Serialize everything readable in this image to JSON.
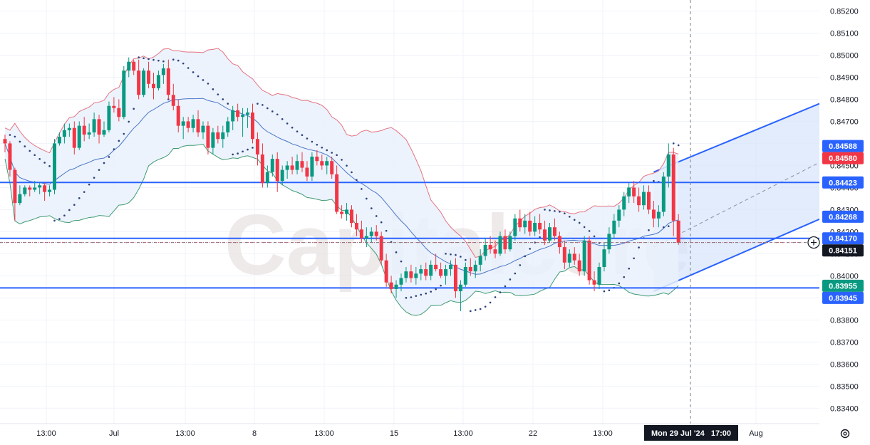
{
  "chart_data": {
    "type": "candlestick",
    "watermark": "Capitalcore",
    "ylim": [
      0.8333,
      0.8525
    ],
    "y_ticks": [
      0.834,
      0.835,
      0.836,
      0.837,
      0.838,
      0.839,
      0.84,
      0.841,
      0.842,
      0.843,
      0.844,
      0.845,
      0.846,
      0.847,
      0.848,
      0.849,
      0.85,
      0.851,
      0.852
    ],
    "y_tick_labels": [
      "0.83400",
      "0.83500",
      "0.83600",
      "0.83700",
      "0.83800",
      "0.83900",
      "0.84000",
      "0.84100",
      "0.84200",
      "0.84300",
      "0.84400",
      "0.84500",
      "0.84600",
      "0.84700",
      "0.84800",
      "0.84900",
      "0.85000",
      "0.85100",
      "0.85200"
    ],
    "x_tick_labels": [
      "13:00",
      "Jul",
      "13:00",
      "8",
      "13:00",
      "15",
      "13:00",
      "22",
      "13:00",
      "Aug"
    ],
    "crosshair_time_label": "Mon 29 Jul '24   17:00",
    "price_tags": [
      {
        "text": "0.84588",
        "value": 0.84588,
        "color": "#2962ff"
      },
      {
        "text": "0.84580",
        "value": 0.8458,
        "color": "#f23645"
      },
      {
        "text": "0.84423",
        "value": 0.84423,
        "color": "#2962ff"
      },
      {
        "text": "0.84268",
        "value": 0.84268,
        "color": "#2962ff"
      },
      {
        "text": "0.84170",
        "value": 0.8417,
        "color": "#2962ff"
      },
      {
        "text": "0.84151",
        "value": 0.84151,
        "color": "#131722"
      },
      {
        "text": "0.83955",
        "value": 0.83955,
        "color": "#089981"
      },
      {
        "text": "0.83945",
        "value": 0.83945,
        "color": "#2962ff"
      }
    ],
    "horizontal_levels": [
      0.84423,
      0.8417,
      0.83945
    ],
    "current_price": 0.84151,
    "colors": {
      "up": "#089981",
      "down": "#f23645",
      "level": "#2962ff",
      "band_upper": "#e57380",
      "band_lower": "#3f9a72",
      "band_basis": "#4a76c7",
      "band_fill": "#e9f1fb",
      "channel_fill": "#d6e4fb",
      "sar": "#2a3f7a"
    },
    "channel": {
      "start_index": 131,
      "end_index": 172,
      "upper_start": 0.8447,
      "upper_end": 0.8485,
      "mid_start": 0.8413,
      "mid_end": 0.846,
      "lower_start": 0.8393,
      "lower_end": 0.8433
    },
    "candles": [
      [
        0.8462,
        0.8464,
        0.8456,
        0.846
      ],
      [
        0.846,
        0.8461,
        0.8445,
        0.8448
      ],
      [
        0.8448,
        0.8449,
        0.8425,
        0.8433
      ],
      [
        0.8433,
        0.8441,
        0.8432,
        0.8437
      ],
      [
        0.8437,
        0.8441,
        0.8436,
        0.844
      ],
      [
        0.844,
        0.8441,
        0.8436,
        0.8439
      ],
      [
        0.8439,
        0.8443,
        0.8438,
        0.844
      ],
      [
        0.844,
        0.8442,
        0.8437,
        0.8441
      ],
      [
        0.8441,
        0.8442,
        0.8434,
        0.8438
      ],
      [
        0.8438,
        0.8441,
        0.8436,
        0.8439
      ],
      [
        0.8439,
        0.8462,
        0.8437,
        0.846
      ],
      [
        0.846,
        0.8465,
        0.8459,
        0.8463
      ],
      [
        0.8463,
        0.8469,
        0.846,
        0.8466
      ],
      [
        0.8466,
        0.8469,
        0.8463,
        0.8467
      ],
      [
        0.8467,
        0.847,
        0.8455,
        0.8458
      ],
      [
        0.8458,
        0.847,
        0.8457,
        0.8468
      ],
      [
        0.8468,
        0.8472,
        0.8461,
        0.8464
      ],
      [
        0.8464,
        0.8469,
        0.8462,
        0.8465
      ],
      [
        0.8465,
        0.8474,
        0.8463,
        0.8471
      ],
      [
        0.8471,
        0.8473,
        0.846,
        0.8464
      ],
      [
        0.8464,
        0.847,
        0.8463,
        0.8466
      ],
      [
        0.8466,
        0.8479,
        0.8465,
        0.8477
      ],
      [
        0.8477,
        0.8481,
        0.8474,
        0.8476
      ],
      [
        0.8476,
        0.848,
        0.847,
        0.8472
      ],
      [
        0.8472,
        0.8495,
        0.8471,
        0.8493
      ],
      [
        0.8493,
        0.8499,
        0.849,
        0.8497
      ],
      [
        0.8497,
        0.8498,
        0.8491,
        0.8493
      ],
      [
        0.8493,
        0.8498,
        0.848,
        0.8482
      ],
      [
        0.8482,
        0.8494,
        0.8481,
        0.8493
      ],
      [
        0.8493,
        0.8497,
        0.8485,
        0.8487
      ],
      [
        0.8487,
        0.8492,
        0.848,
        0.8485
      ],
      [
        0.8485,
        0.8493,
        0.8484,
        0.8491
      ],
      [
        0.8491,
        0.8496,
        0.8487,
        0.8494
      ],
      [
        0.8494,
        0.8498,
        0.848,
        0.8482
      ],
      [
        0.8482,
        0.8487,
        0.8475,
        0.8477
      ],
      [
        0.8477,
        0.848,
        0.8465,
        0.8468
      ],
      [
        0.8468,
        0.8472,
        0.8462,
        0.847
      ],
      [
        0.847,
        0.8472,
        0.8465,
        0.8467
      ],
      [
        0.8467,
        0.8473,
        0.8465,
        0.8471
      ],
      [
        0.8471,
        0.8475,
        0.8463,
        0.8465
      ],
      [
        0.8465,
        0.847,
        0.8462,
        0.8468
      ],
      [
        0.8468,
        0.847,
        0.8455,
        0.8458
      ],
      [
        0.8458,
        0.8467,
        0.8455,
        0.8465
      ],
      [
        0.8465,
        0.8468,
        0.846,
        0.8462
      ],
      [
        0.8462,
        0.8468,
        0.8458,
        0.8465
      ],
      [
        0.8465,
        0.8472,
        0.8463,
        0.847
      ],
      [
        0.847,
        0.8477,
        0.8466,
        0.8475
      ],
      [
        0.8475,
        0.8478,
        0.847,
        0.8472
      ],
      [
        0.8472,
        0.8476,
        0.8463,
        0.8473
      ],
      [
        0.8473,
        0.8476,
        0.8467,
        0.8474
      ],
      [
        0.8474,
        0.8478,
        0.846,
        0.8462
      ],
      [
        0.8462,
        0.8465,
        0.845,
        0.8455
      ],
      [
        0.8455,
        0.846,
        0.844,
        0.8442
      ],
      [
        0.8442,
        0.845,
        0.844,
        0.8447
      ],
      [
        0.8447,
        0.8455,
        0.8445,
        0.8453
      ],
      [
        0.8453,
        0.8456,
        0.8438,
        0.8443
      ],
      [
        0.8443,
        0.845,
        0.8441,
        0.8448
      ],
      [
        0.8448,
        0.8452,
        0.8444,
        0.845
      ],
      [
        0.845,
        0.8454,
        0.8446,
        0.8448
      ],
      [
        0.8448,
        0.8455,
        0.8446,
        0.8452
      ],
      [
        0.8452,
        0.8456,
        0.8447,
        0.8449
      ],
      [
        0.8449,
        0.8452,
        0.8443,
        0.8445
      ],
      [
        0.8445,
        0.8456,
        0.8443,
        0.8454
      ],
      [
        0.8454,
        0.8457,
        0.845,
        0.8452
      ],
      [
        0.8452,
        0.8455,
        0.8448,
        0.845
      ],
      [
        0.845,
        0.8454,
        0.8446,
        0.8452
      ],
      [
        0.8452,
        0.8454,
        0.8444,
        0.8446
      ],
      [
        0.8446,
        0.845,
        0.8428,
        0.8429
      ],
      [
        0.8429,
        0.8432,
        0.8426,
        0.8428
      ],
      [
        0.8428,
        0.8433,
        0.8425,
        0.843
      ],
      [
        0.843,
        0.8432,
        0.8422,
        0.8424
      ],
      [
        0.8424,
        0.8428,
        0.8418,
        0.8421
      ],
      [
        0.8421,
        0.8425,
        0.8415,
        0.8417
      ],
      [
        0.8417,
        0.8422,
        0.8413,
        0.8418
      ],
      [
        0.8418,
        0.8422,
        0.8415,
        0.842
      ],
      [
        0.842,
        0.8423,
        0.8416,
        0.8418
      ],
      [
        0.8418,
        0.842,
        0.8405,
        0.8407
      ],
      [
        0.8407,
        0.841,
        0.8395,
        0.8397
      ],
      [
        0.8397,
        0.84,
        0.8392,
        0.8394
      ],
      [
        0.8394,
        0.8398,
        0.839,
        0.8396
      ],
      [
        0.8396,
        0.8401,
        0.8393,
        0.8399
      ],
      [
        0.8399,
        0.8404,
        0.8397,
        0.8402
      ],
      [
        0.8402,
        0.8405,
        0.8397,
        0.8399
      ],
      [
        0.8399,
        0.8404,
        0.8396,
        0.8401
      ],
      [
        0.8401,
        0.8405,
        0.8398,
        0.8403
      ],
      [
        0.8403,
        0.8406,
        0.8398,
        0.84
      ],
      [
        0.84,
        0.8407,
        0.8398,
        0.8405
      ],
      [
        0.8405,
        0.841,
        0.8402,
        0.8403
      ],
      [
        0.8403,
        0.8406,
        0.8399,
        0.84
      ],
      [
        0.84,
        0.8405,
        0.8396,
        0.8403
      ],
      [
        0.8403,
        0.8407,
        0.84,
        0.8405
      ],
      [
        0.8405,
        0.8408,
        0.839,
        0.8393
      ],
      [
        0.8393,
        0.8398,
        0.8384,
        0.8396
      ],
      [
        0.8396,
        0.8406,
        0.8395,
        0.8404
      ],
      [
        0.8404,
        0.8408,
        0.84,
        0.8402
      ],
      [
        0.8402,
        0.8407,
        0.8399,
        0.8405
      ],
      [
        0.8405,
        0.8412,
        0.8402,
        0.8409
      ],
      [
        0.8409,
        0.8417,
        0.8407,
        0.8414
      ],
      [
        0.8414,
        0.8418,
        0.841,
        0.8412
      ],
      [
        0.8412,
        0.8416,
        0.8408,
        0.841
      ],
      [
        0.841,
        0.842,
        0.8409,
        0.8418
      ],
      [
        0.8418,
        0.8421,
        0.841,
        0.8412
      ],
      [
        0.8412,
        0.842,
        0.8411,
        0.8418
      ],
      [
        0.8418,
        0.8428,
        0.8416,
        0.8426
      ],
      [
        0.8426,
        0.843,
        0.842,
        0.8422
      ],
      [
        0.8422,
        0.8428,
        0.8419,
        0.8425
      ],
      [
        0.8425,
        0.8429,
        0.8418,
        0.842
      ],
      [
        0.842,
        0.8427,
        0.8418,
        0.8424
      ],
      [
        0.8424,
        0.8428,
        0.8419,
        0.8421
      ],
      [
        0.8421,
        0.8425,
        0.8414,
        0.8416
      ],
      [
        0.8416,
        0.8424,
        0.8415,
        0.8422
      ],
      [
        0.8422,
        0.8426,
        0.8416,
        0.8418
      ],
      [
        0.8418,
        0.842,
        0.841,
        0.8413
      ],
      [
        0.8413,
        0.8416,
        0.8403,
        0.8406
      ],
      [
        0.8406,
        0.8412,
        0.8404,
        0.841
      ],
      [
        0.841,
        0.8413,
        0.8405,
        0.8407
      ],
      [
        0.8407,
        0.841,
        0.84,
        0.8402
      ],
      [
        0.8402,
        0.8418,
        0.84,
        0.8416
      ],
      [
        0.8416,
        0.8418,
        0.8396,
        0.8398
      ],
      [
        0.8398,
        0.8402,
        0.8393,
        0.8396
      ],
      [
        0.8396,
        0.8406,
        0.8394,
        0.8404
      ],
      [
        0.8404,
        0.8415,
        0.8402,
        0.8412
      ],
      [
        0.8412,
        0.8422,
        0.841,
        0.8419
      ],
      [
        0.8419,
        0.8428,
        0.8417,
        0.8425
      ],
      [
        0.8425,
        0.8432,
        0.8422,
        0.843
      ],
      [
        0.843,
        0.8438,
        0.8427,
        0.8436
      ],
      [
        0.8436,
        0.8442,
        0.8433,
        0.844
      ],
      [
        0.844,
        0.8443,
        0.8433,
        0.8436
      ],
      [
        0.8436,
        0.844,
        0.8429,
        0.8432
      ],
      [
        0.8432,
        0.8441,
        0.843,
        0.8438
      ],
      [
        0.8438,
        0.8441,
        0.8428,
        0.843
      ],
      [
        0.843,
        0.8434,
        0.8422,
        0.8426
      ],
      [
        0.8426,
        0.8432,
        0.8422,
        0.8429
      ],
      [
        0.8429,
        0.8447,
        0.8427,
        0.8445
      ],
      [
        0.8445,
        0.846,
        0.844,
        0.8455
      ],
      [
        0.8455,
        0.8458,
        0.8418,
        0.8425
      ],
      [
        0.8425,
        0.8428,
        0.8414,
        0.8415
      ]
    ]
  }
}
